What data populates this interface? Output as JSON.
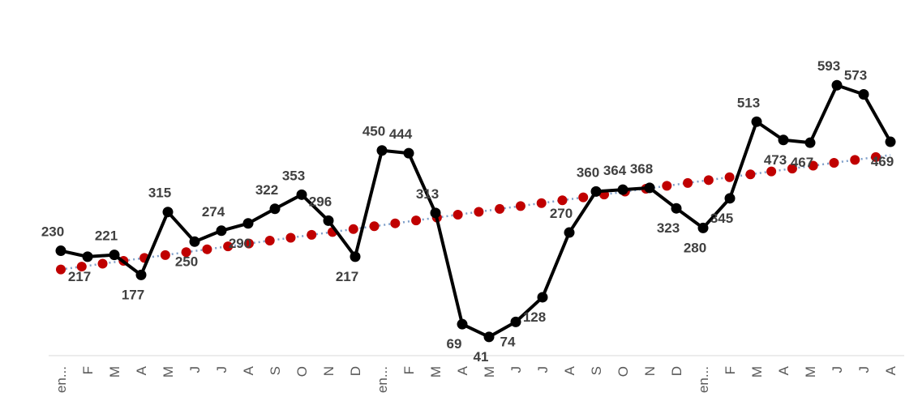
{
  "chart_data": {
    "type": "line",
    "categories": [
      "en...",
      "F",
      "M",
      "A",
      "M",
      "J",
      "J",
      "A",
      "S",
      "O",
      "N",
      "D",
      "en...",
      "F",
      "M",
      "A",
      "M",
      "J",
      "J",
      "A",
      "S",
      "O",
      "N",
      "D",
      "en...",
      "F",
      "M",
      "A",
      "M",
      "J",
      "J",
      "A"
    ],
    "series": [
      {
        "color": "#000000",
        "values": [
          230,
          217,
          221,
          177,
          315,
          250,
          274,
          290,
          322,
          353,
          296,
          217,
          450,
          444,
          313,
          69,
          41,
          74,
          128,
          270,
          360,
          364,
          368,
          323,
          280,
          345,
          513,
          473,
          467,
          593,
          573,
          469
        ]
      }
    ],
    "trendline": {
      "color": "#7f9fc9",
      "dot_color": "#c00000",
      "values": [
        189,
        440
      ]
    },
    "ylim": [
      0,
      780
    ]
  }
}
